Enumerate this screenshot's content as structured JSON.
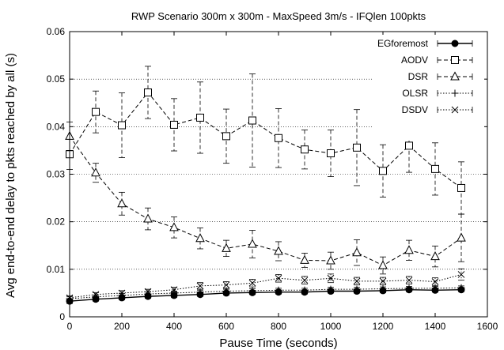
{
  "chart_data": {
    "type": "line",
    "title": "RWP Scenario 300m x 300m - MaxSpeed 3m/s - IFQlen 100pkts",
    "xlabel": "Pause Time (seconds)",
    "ylabel": "Avg end-to-end delay to pkts reached by all (s)",
    "xlim": [
      0,
      1600
    ],
    "ylim": [
      0,
      0.06
    ],
    "xticks": [
      "0",
      "200",
      "400",
      "600",
      "800",
      "1000",
      "1200",
      "1400",
      "1600"
    ],
    "yticks": [
      "0",
      "0.01",
      "0.02",
      "0.03",
      "0.04",
      "0.05",
      "0.06"
    ],
    "grid": "horizontal dotted",
    "legend_position": "top-right",
    "x": [
      0,
      100,
      200,
      300,
      400,
      500,
      600,
      700,
      800,
      900,
      1000,
      1100,
      1200,
      1300,
      1400,
      1500
    ],
    "series": [
      {
        "name": "EGforemost",
        "marker": "filled-circle",
        "dash": "solid",
        "values": [
          0.0033,
          0.0037,
          0.004,
          0.0043,
          0.0045,
          0.0047,
          0.005,
          0.0051,
          0.0052,
          0.0052,
          0.0054,
          0.0054,
          0.0055,
          0.0057,
          0.0056,
          0.0057
        ],
        "errors": [
          0.0005,
          0.0004,
          0.0004,
          0.0004,
          0.0004,
          0.0004,
          0.0004,
          0.0004,
          0.0004,
          0.0004,
          0.0004,
          0.0004,
          0.0004,
          0.0004,
          0.0004,
          0.0004
        ]
      },
      {
        "name": "AODV",
        "marker": "open-square",
        "dash": "dashed",
        "values": [
          0.0342,
          0.0431,
          0.0403,
          0.0472,
          0.0404,
          0.0419,
          0.038,
          0.0413,
          0.0376,
          0.0352,
          0.0344,
          0.0356,
          0.0307,
          0.036,
          0.0311,
          0.0271
        ],
        "errors": [
          0.0032,
          0.0044,
          0.0068,
          0.0055,
          0.0055,
          0.0075,
          0.0057,
          0.0098,
          0.0062,
          0.0041,
          0.0049,
          0.008,
          0.0055,
          0.0056,
          0.0055,
          0.0055
        ]
      },
      {
        "name": "DSR",
        "marker": "open-triangle",
        "dash": "dashed",
        "values": [
          0.038,
          0.0303,
          0.0238,
          0.0206,
          0.0188,
          0.0165,
          0.0144,
          0.0153,
          0.0138,
          0.0119,
          0.0118,
          0.0135,
          0.0108,
          0.014,
          0.0127,
          0.0166
        ],
        "errors": [
          0.003,
          0.002,
          0.0024,
          0.0023,
          0.0022,
          0.0022,
          0.0017,
          0.0029,
          0.002,
          0.0015,
          0.0018,
          0.0027,
          0.0018,
          0.0021,
          0.0022,
          0.005
        ]
      },
      {
        "name": "OLSR",
        "marker": "plus",
        "dash": "dotted",
        "values": [
          0.0038,
          0.0042,
          0.0045,
          0.0048,
          0.005,
          0.0052,
          0.0054,
          0.0055,
          0.0056,
          0.0056,
          0.0058,
          0.0058,
          0.0059,
          0.006,
          0.006,
          0.0061
        ],
        "errors": [
          0.0004,
          0.0004,
          0.0004,
          0.0004,
          0.0004,
          0.0004,
          0.0004,
          0.0004,
          0.0004,
          0.0004,
          0.0004,
          0.0004,
          0.0004,
          0.0004,
          0.0004,
          0.0004
        ]
      },
      {
        "name": "DSDV",
        "marker": "cross",
        "dash": "dotted",
        "values": [
          0.004,
          0.0047,
          0.005,
          0.0053,
          0.0057,
          0.0065,
          0.0067,
          0.0071,
          0.0081,
          0.0077,
          0.0081,
          0.0075,
          0.0075,
          0.0077,
          0.0074,
          0.0089
        ],
        "errors": [
          0.0004,
          0.0004,
          0.0005,
          0.0005,
          0.0005,
          0.0007,
          0.0007,
          0.0008,
          0.0008,
          0.0008,
          0.0009,
          0.0008,
          0.0008,
          0.0008,
          0.0008,
          0.0012
        ]
      }
    ]
  }
}
